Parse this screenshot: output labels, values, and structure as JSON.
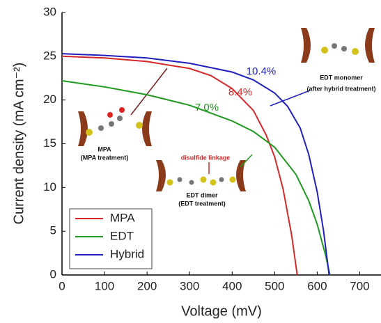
{
  "chart_data": {
    "type": "line",
    "x_label": "Voltage (mV)",
    "y_label": "Current density (mA cm⁻²)",
    "xlim": [
      0,
      750
    ],
    "ylim": [
      0,
      30
    ],
    "xticks": [
      0,
      100,
      200,
      300,
      400,
      500,
      600,
      700
    ],
    "yticks": [
      0,
      5,
      10,
      15,
      20,
      25,
      30
    ],
    "legend": "lower left",
    "series": [
      {
        "name": "MPA",
        "color": "#d62828",
        "x": [
          0,
          100,
          200,
          300,
          350,
          400,
          450,
          480,
          500,
          520,
          540,
          553
        ],
        "values": [
          25.0,
          24.8,
          24.4,
          23.6,
          22.8,
          21.3,
          18.8,
          16.0,
          13.5,
          9.8,
          4.5,
          0
        ]
      },
      {
        "name": "EDT",
        "color": "#1f9a1f",
        "x": [
          0,
          100,
          200,
          300,
          400,
          450,
          500,
          550,
          580,
          600,
          620,
          630
        ],
        "values": [
          22.2,
          21.5,
          20.6,
          19.4,
          17.6,
          16.4,
          14.6,
          11.5,
          8.5,
          5.8,
          2.2,
          0
        ]
      },
      {
        "name": "Hybrid",
        "color": "#2020c0",
        "x": [
          0,
          100,
          200,
          300,
          400,
          450,
          500,
          530,
          560,
          580,
          600,
          615,
          628
        ],
        "values": [
          25.3,
          25.1,
          24.8,
          24.2,
          23.2,
          22.3,
          20.8,
          19.3,
          16.8,
          13.8,
          9.5,
          5.0,
          0
        ]
      }
    ],
    "annotations": [
      {
        "text": "10.4%",
        "color": "#2020c0"
      },
      {
        "text": "8.4%",
        "color": "#d62828"
      },
      {
        "text": "7.0%",
        "color": "#1f9a1f"
      },
      {
        "text": "EDT monomer",
        "color": "#111"
      },
      {
        "text": "(after hybrid treatment)",
        "color": "#111"
      },
      {
        "text": "MPA",
        "color": "#111"
      },
      {
        "text": "(MPA treatment)",
        "color": "#111"
      },
      {
        "text": "disulfide linkage",
        "color": "#d62828"
      },
      {
        "text": "EDT dimer",
        "color": "#111"
      },
      {
        "text": "(EDT treatment)",
        "color": "#111"
      }
    ]
  }
}
